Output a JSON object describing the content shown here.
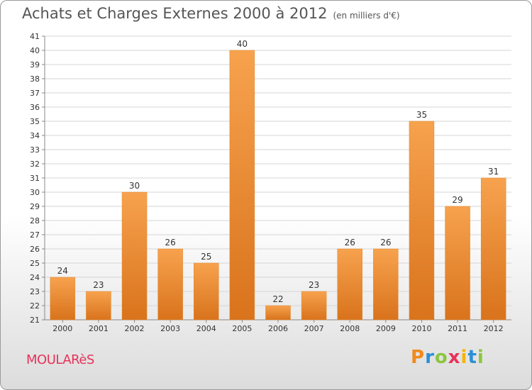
{
  "header": {
    "title": "Achats et Charges Externes 2000 à 2012",
    "unit": "(en milliers d'€)"
  },
  "footer": {
    "commune": "MOULARèS",
    "logo": [
      "P",
      "r",
      "o",
      "x",
      "i",
      "t",
      "i"
    ],
    "logo_colors": [
      "#f08a1c",
      "#2a8fd6",
      "#8cc63f",
      "#e8325a",
      "#f5b400",
      "#2a8fd6",
      "#8cc63f"
    ]
  },
  "chart_data": {
    "type": "bar",
    "title": "Achats et Charges Externes 2000 à 2012",
    "xlabel": "",
    "ylabel": "",
    "categories": [
      "2000",
      "2001",
      "2002",
      "2003",
      "2004",
      "2005",
      "2006",
      "2007",
      "2008",
      "2009",
      "2010",
      "2011",
      "2012"
    ],
    "values": [
      24,
      23,
      30,
      26,
      25,
      40,
      22,
      23,
      26,
      26,
      35,
      29,
      31
    ],
    "value_labels": [
      "24",
      "23",
      "30",
      "26",
      "25",
      "40",
      "22",
      "23",
      "26",
      "26",
      "35",
      "29",
      "31"
    ],
    "ylim": [
      21,
      41
    ],
    "yticks": [
      "21",
      "22",
      "23",
      "24",
      "25",
      "26",
      "27",
      "28",
      "29",
      "30",
      "31",
      "32",
      "33",
      "34",
      "35",
      "36",
      "37",
      "38",
      "39",
      "40",
      "41"
    ],
    "grid": true,
    "legend": "none",
    "bar_color": "#f4a04c"
  }
}
